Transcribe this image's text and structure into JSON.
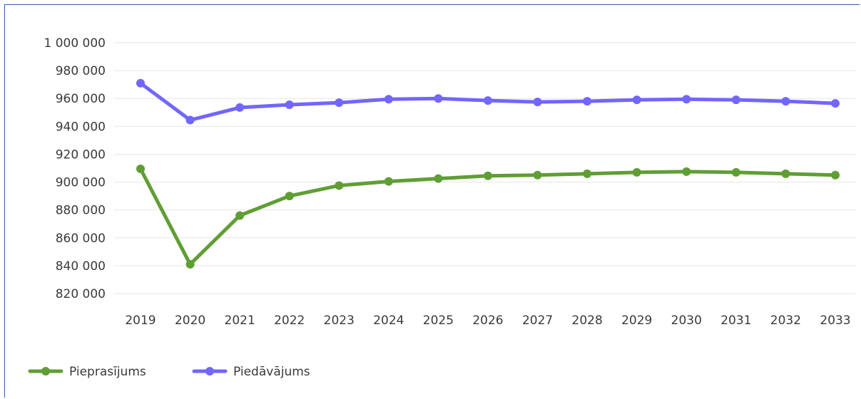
{
  "chart_data": {
    "type": "line",
    "title": "",
    "xlabel": "",
    "ylabel": "",
    "categories": [
      "2019",
      "2020",
      "2021",
      "2022",
      "2023",
      "2024",
      "2025",
      "2026",
      "2027",
      "2028",
      "2029",
      "2030",
      "2031",
      "2032",
      "2033"
    ],
    "ylim": [
      820000,
      1000000
    ],
    "yticks": [
      820000,
      840000,
      860000,
      880000,
      900000,
      920000,
      940000,
      960000,
      980000,
      1000000
    ],
    "ytick_labels": [
      "820 000",
      "840 000",
      "860 000",
      "880 000",
      "900 000",
      "920 000",
      "940 000",
      "960 000",
      "980 000",
      "1 000 000"
    ],
    "grid": true,
    "legend_position": "bottom-left",
    "series": [
      {
        "name": "Pieprasījums",
        "color": "#5f9e34",
        "values": [
          909500,
          841000,
          876000,
          890000,
          897500,
          900500,
          902500,
          904500,
          905000,
          906000,
          907000,
          907500,
          907000,
          906000,
          905000
        ]
      },
      {
        "name": "Piedāvājums",
        "color": "#7266ff",
        "values": [
          971000,
          944500,
          953500,
          955500,
          957000,
          959500,
          960000,
          958500,
          957500,
          958000,
          959000,
          959500,
          959000,
          958000,
          956500
        ]
      }
    ]
  }
}
